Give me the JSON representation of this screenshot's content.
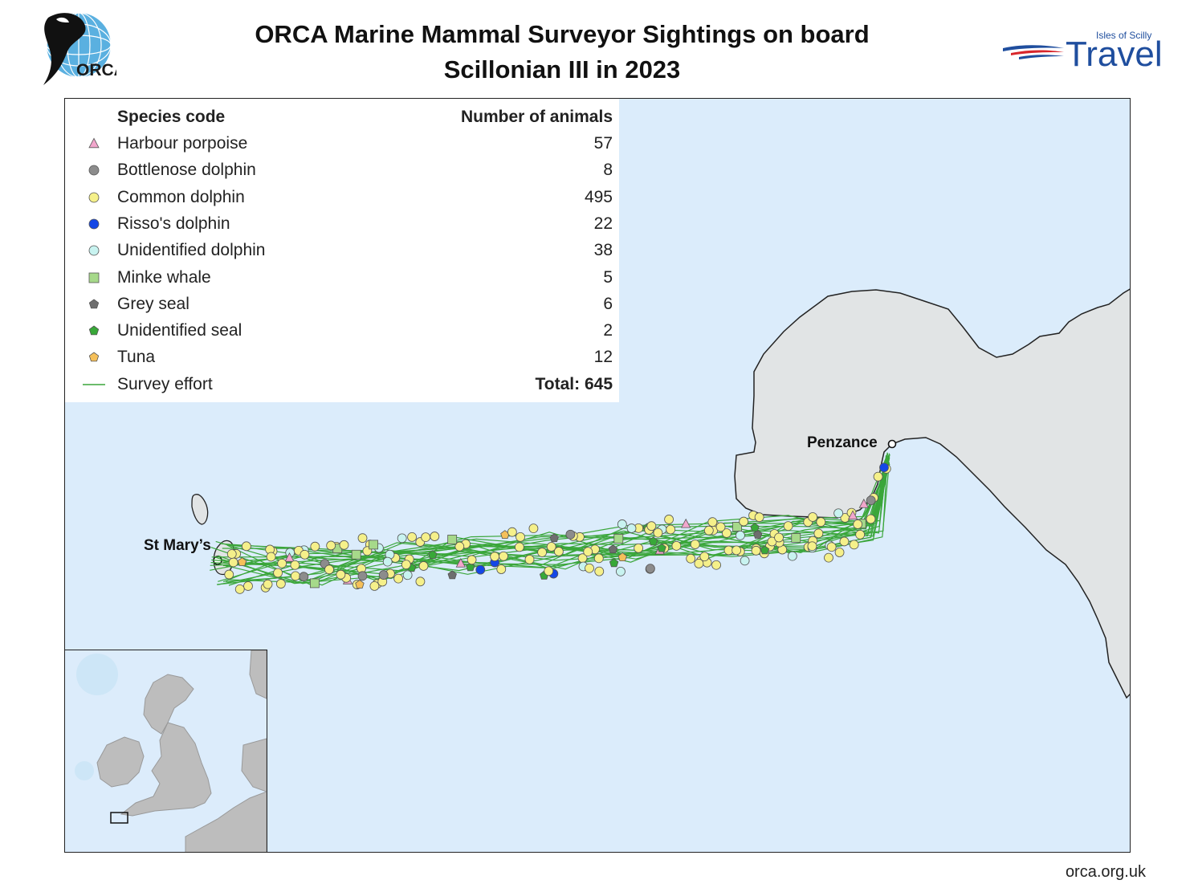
{
  "header": {
    "title_line1": "ORCA Marine Mammal Surveyor Sightings on board",
    "title_line2": "Scillonian III in 2023"
  },
  "logos": {
    "orca_text": "ORCA",
    "travel_small": "Isles of Scilly",
    "travel_big": "Travel"
  },
  "legend": {
    "header_species": "Species code",
    "header_count": "Number of animals",
    "rows": [
      {
        "name": "Harbour porpoise",
        "count": "57",
        "symbol": "triangle",
        "color": "#f2a6cc"
      },
      {
        "name": "Bottlenose dolphin",
        "count": "8",
        "symbol": "circle",
        "color": "#8c8c8c"
      },
      {
        "name": "Common dolphin",
        "count": "495",
        "symbol": "circle",
        "color": "#f5f08a"
      },
      {
        "name": "Risso's dolphin",
        "count": "22",
        "symbol": "circle",
        "color": "#1447e6"
      },
      {
        "name": "Unidentified dolphin",
        "count": "38",
        "symbol": "circle",
        "color": "#c8f3f0"
      },
      {
        "name": "Minke whale",
        "count": "5",
        "symbol": "square",
        "color": "#a6d98a"
      },
      {
        "name": "Grey seal",
        "count": "6",
        "symbol": "pentagon",
        "color": "#6e6e6e"
      },
      {
        "name": "Unidentified seal",
        "count": "2",
        "symbol": "pentagon",
        "color": "#38a838"
      },
      {
        "name": "Tuna",
        "count": "12",
        "symbol": "pentagon",
        "color": "#f5c05a"
      },
      {
        "name": "Survey effort",
        "count": "Total: 645",
        "symbol": "line",
        "color": "#3aa63a"
      }
    ]
  },
  "places": {
    "penzance": "Penzance",
    "st_marys": "St Mary’s"
  },
  "footer": "orca.org.uk",
  "colors": {
    "sea": "#dbecfb",
    "land": "#e1e4e5",
    "survey_line": "#3aa63a"
  }
}
